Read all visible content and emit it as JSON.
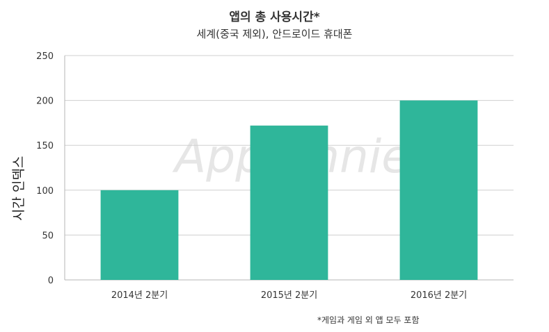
{
  "chart_data": {
    "type": "bar",
    "title": "앱의 총 사용시간*",
    "subtitle": "세계(중국 제외), 안드로이드 휴대폰",
    "xlabel": "",
    "ylabel": "시간 인덱스",
    "categories": [
      "2014년 2분기",
      "2015년 2분기",
      "2016년 2분기"
    ],
    "values": [
      100,
      172,
      200
    ],
    "ylim": [
      0,
      250
    ],
    "yticks": [
      0,
      50,
      100,
      150,
      200,
      250
    ],
    "grid": true,
    "colors": {
      "bar": "#2fb69a",
      "grid": "#cfcfcf",
      "axis": "#b5b5b5"
    },
    "footnote": "*게임과 게임 외 앱 모두 포함",
    "watermark": "App Annie"
  }
}
